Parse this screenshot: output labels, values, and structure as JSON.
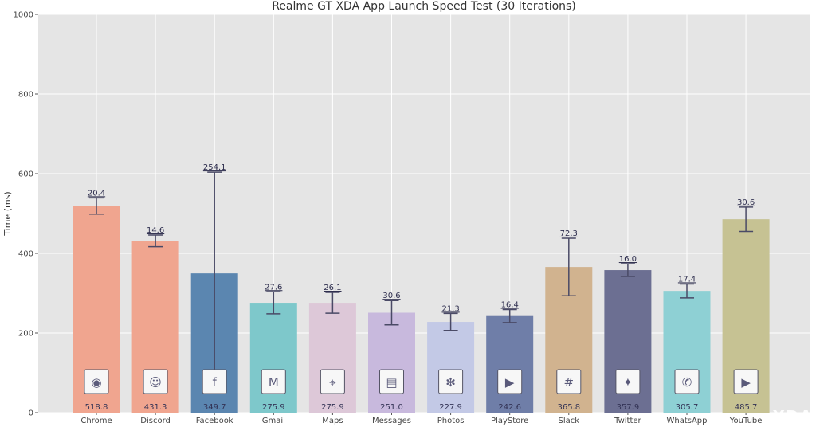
{
  "chart_data": {
    "type": "bar",
    "title": "Realme GT XDA App Launch Speed Test (30 Iterations)",
    "xlabel": "",
    "ylabel": "Time (ms)",
    "ylim": [
      0,
      1000
    ],
    "yticks": [
      0,
      200,
      400,
      600,
      800,
      1000
    ],
    "grid": true,
    "categories": [
      "Chrome",
      "Discord",
      "Facebook",
      "Gmail",
      "Maps",
      "Messages",
      "Photos",
      "PlayStore",
      "Slack",
      "Twitter",
      "WhatsApp",
      "YouTube"
    ],
    "values": [
      518.8,
      431.3,
      349.7,
      275.9,
      275.9,
      251.0,
      227.9,
      242.6,
      365.8,
      357.9,
      305.7,
      485.7
    ],
    "value_labels": [
      "518.8",
      "431.3",
      "349.7",
      "275.9",
      "275.9",
      "251.0",
      "227.9",
      "242.6",
      "365.8",
      "357.9",
      "305.7",
      "485.7"
    ],
    "errors": [
      20.4,
      14.6,
      254.1,
      27.6,
      26.1,
      30.6,
      21.3,
      16.4,
      72.3,
      16.0,
      17.4,
      30.6
    ],
    "error_labels": [
      "20.4",
      "14.6",
      "254.1",
      "27.6",
      "26.1",
      "30.6",
      "21.3",
      "16.4",
      "72.3",
      "16.0",
      "17.4",
      "30.6"
    ],
    "colors": [
      "#f0a58f",
      "#f0a58f",
      "#5b86b0",
      "#7ec8cb",
      "#ddc8d8",
      "#c8b9dd",
      "#c3c9e6",
      "#6f7ea8",
      "#d1b38f",
      "#6c6f92",
      "#8ed0d4",
      "#c6c293"
    ],
    "icons": [
      "chrome-icon",
      "discord-icon",
      "facebook-icon",
      "gmail-icon",
      "maps-icon",
      "messages-icon",
      "photos-icon",
      "playstore-icon",
      "slack-icon",
      "twitter-icon",
      "whatsapp-icon",
      "youtube-icon"
    ]
  },
  "watermark": "XDA"
}
